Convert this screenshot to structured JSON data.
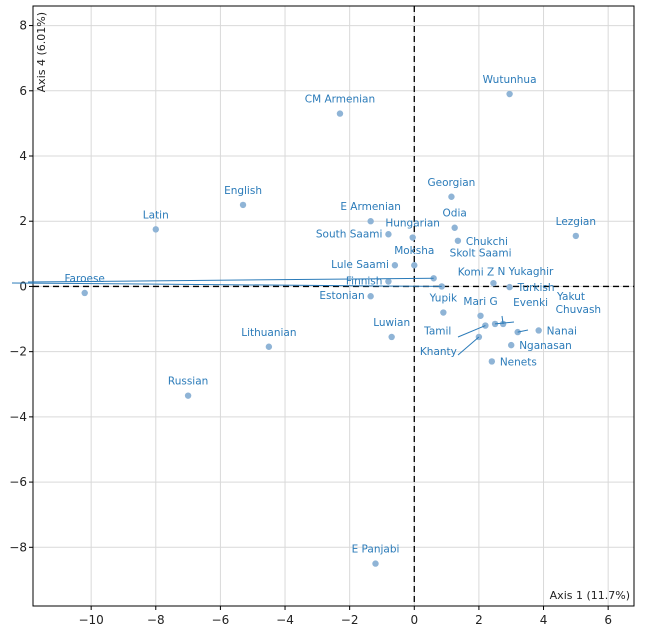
{
  "chart_data": {
    "type": "scatter",
    "xlabel": "Axis 1 (11.7%)",
    "ylabel": "Axis 4 (6.01%)",
    "xlim": [
      -11.8,
      6.8
    ],
    "ylim": [
      -9.8,
      8.6
    ],
    "x_ticks": [
      -10,
      -8,
      -6,
      -4,
      -2,
      0,
      2,
      4,
      6
    ],
    "y_ticks": [
      -8,
      -6,
      -4,
      -2,
      0,
      2,
      4,
      6,
      8
    ],
    "x_tick_labels": [
      "−10",
      "−8",
      "−6",
      "−4",
      "−2",
      "0",
      "2",
      "4",
      "6"
    ],
    "y_tick_labels": [
      "−8",
      "−6",
      "−4",
      "−2",
      "0",
      "2",
      "4",
      "6",
      "8"
    ],
    "grid": true,
    "zero_lines": "dashed",
    "point_color": "#8fb4d6",
    "label_color": "#2b7bb9",
    "points": [
      {
        "label": "Wutunhua",
        "x": 2.95,
        "y": 5.9
      },
      {
        "label": "CM Armenian",
        "x": -2.3,
        "y": 5.3
      },
      {
        "label": "Georgian",
        "x": 1.15,
        "y": 2.75
      },
      {
        "label": "English",
        "x": -5.3,
        "y": 2.5
      },
      {
        "label": "Latin",
        "x": -8.0,
        "y": 1.75
      },
      {
        "label": "E Armenian",
        "x": -1.35,
        "y": 2.0
      },
      {
        "label": "Odia",
        "x": 1.25,
        "y": 1.8
      },
      {
        "label": "Lezgian",
        "x": 5.0,
        "y": 1.55
      },
      {
        "label": "Hungarian",
        "x": -0.05,
        "y": 1.5
      },
      {
        "label": "South Saami",
        "x": -0.8,
        "y": 1.6
      },
      {
        "label": "Chukchi",
        "x": 1.35,
        "y": 1.4
      },
      {
        "label": "Moksha",
        "x": 0.0,
        "y": 0.65
      },
      {
        "label": "Lule Saami",
        "x": -0.6,
        "y": 0.65
      },
      {
        "label": "Skolt Saami",
        "x": 0.6,
        "y": 0.25
      },
      {
        "label": "Finnish",
        "x": -0.8,
        "y": 0.15
      },
      {
        "label": "Komi Z",
        "x": 0.85,
        "y": 0.0
      },
      {
        "label": "N Yukaghir",
        "x": 2.45,
        "y": 0.1
      },
      {
        "label": "Turkish",
        "x": 2.95,
        "y": -0.02
      },
      {
        "label": "Faroese",
        "x": -10.2,
        "y": -0.2
      },
      {
        "label": "Estonian",
        "x": -1.35,
        "y": -0.3
      },
      {
        "label": "Yupik",
        "x": 0.9,
        "y": -0.8
      },
      {
        "label": "Mari G",
        "x": 2.05,
        "y": -0.9
      },
      {
        "label": "Evenki",
        "x": 2.75,
        "y": -1.15
      },
      {
        "label": "Yakut",
        "x": 2.5,
        "y": -1.15
      },
      {
        "label": "Tamil",
        "x": 2.2,
        "y": -1.2
      },
      {
        "label": "Chuvash",
        "x": 3.2,
        "y": -1.4
      },
      {
        "label": "Nanai",
        "x": 3.85,
        "y": -1.35
      },
      {
        "label": "Luwian",
        "x": -0.7,
        "y": -1.55
      },
      {
        "label": "Khanty",
        "x": 2.0,
        "y": -1.55
      },
      {
        "label": "Nganasan",
        "x": 3.0,
        "y": -1.8
      },
      {
        "label": "Lithuanian",
        "x": -4.5,
        "y": -1.85
      },
      {
        "label": "Nenets",
        "x": 2.4,
        "y": -2.3
      },
      {
        "label": "Russian",
        "x": -7.0,
        "y": -3.35
      },
      {
        "label": "E Panjabi",
        "x": -1.2,
        "y": -8.5
      }
    ]
  }
}
